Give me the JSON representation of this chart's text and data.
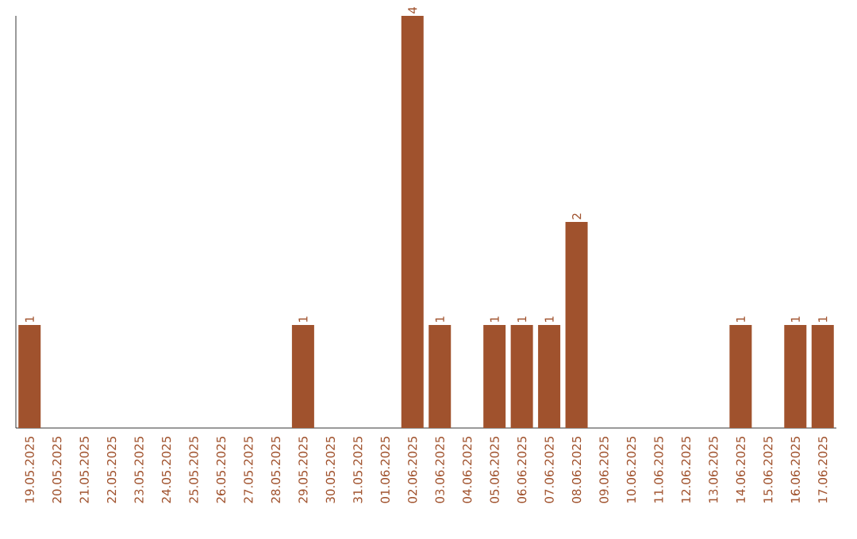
{
  "chart_data": {
    "type": "bar",
    "categories": [
      "19.05.2025",
      "20.05.2025",
      "21.05.2025",
      "22.05.2025",
      "23.05.2025",
      "24.05.2025",
      "25.05.2025",
      "26.05.2025",
      "27.05.2025",
      "28.05.2025",
      "29.05.2025",
      "30.05.2025",
      "31.05.2025",
      "01.06.2025",
      "02.06.2025",
      "03.06.2025",
      "04.06.2025",
      "05.06.2025",
      "06.06.2025",
      "07.06.2025",
      "08.06.2025",
      "09.06.2025",
      "10.06.2025",
      "11.06.2025",
      "12.06.2025",
      "13.06.2025",
      "14.06.2025",
      "15.06.2025",
      "16.06.2025",
      "17.06.2025"
    ],
    "values": [
      1,
      0,
      0,
      0,
      0,
      0,
      0,
      0,
      0,
      0,
      1,
      0,
      0,
      0,
      4,
      1,
      0,
      1,
      1,
      1,
      2,
      0,
      0,
      0,
      0,
      0,
      1,
      0,
      1,
      1
    ],
    "value_labels": [
      "1",
      null,
      null,
      null,
      null,
      null,
      null,
      null,
      null,
      null,
      "1",
      null,
      null,
      null,
      "4",
      "1",
      null,
      "1",
      "1",
      "1",
      "2",
      null,
      null,
      null,
      null,
      null,
      "1",
      null,
      "1",
      "1"
    ],
    "color": "#a0522d",
    "tick_labels": "x"
  }
}
